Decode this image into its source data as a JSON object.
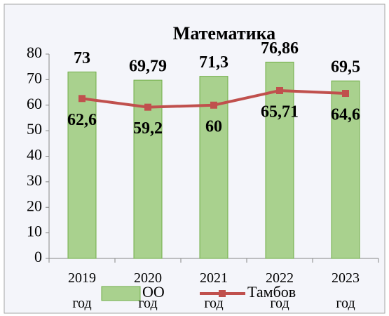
{
  "chart_data": {
    "type": "bar",
    "title": "Математика",
    "categories": [
      "2019 год",
      "2020 год",
      "2021 год",
      "2022 год",
      "2023 год"
    ],
    "series": [
      {
        "name": "ОО",
        "type": "bar",
        "color": "#a9d18e",
        "values": [
          73,
          69.79,
          71.3,
          76.86,
          69.5
        ],
        "value_labels": [
          "73",
          "69,79",
          "71,3",
          "76,86",
          "69,5"
        ]
      },
      {
        "name": "Тамбов",
        "type": "line",
        "color": "#c0504d",
        "values": [
          62.6,
          59.2,
          60,
          65.71,
          64.6
        ],
        "value_labels": [
          "62,6",
          "59,2",
          "60",
          "65,71",
          "64,6"
        ]
      }
    ],
    "ylim": [
      0,
      80
    ],
    "yticks": [
      0,
      10,
      20,
      30,
      40,
      50,
      60,
      70,
      80
    ],
    "legend": "bottom"
  }
}
